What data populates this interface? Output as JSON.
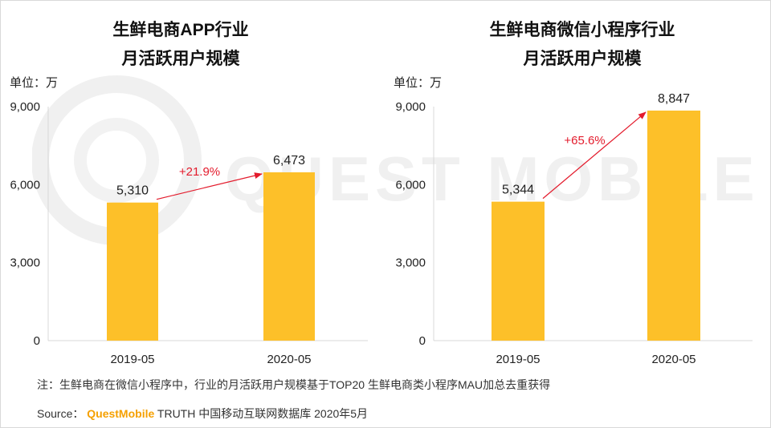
{
  "chart_data": [
    {
      "type": "bar",
      "title_lines": [
        "生鲜电商APP行业",
        "月活跃用户规模"
      ],
      "unit": "单位：万",
      "categories": [
        "2019-05",
        "2020-05"
      ],
      "values": [
        5310,
        6473
      ],
      "value_labels": [
        "5,310",
        "6,473"
      ],
      "growth_label": "+21.9%",
      "ylim": [
        0,
        9000
      ],
      "yticks": [
        0,
        3000,
        6000,
        9000
      ],
      "ytick_labels": [
        "0",
        "3,000",
        "6,000",
        "9,000"
      ],
      "bar_color": "#fdc029",
      "arrow_color": "#e31b2c"
    },
    {
      "type": "bar",
      "title_lines": [
        "生鲜电商微信小程序行业",
        "月活跃用户规模"
      ],
      "unit": "单位：万",
      "categories": [
        "2019-05",
        "2020-05"
      ],
      "values": [
        5344,
        8847
      ],
      "value_labels": [
        "5,344",
        "8,847"
      ],
      "growth_label": "+65.6%",
      "ylim": [
        0,
        9000
      ],
      "yticks": [
        0,
        3000,
        6000,
        9000
      ],
      "ytick_labels": [
        "0",
        "3,000",
        "6,000",
        "9,000"
      ],
      "bar_color": "#fdc029",
      "arrow_color": "#e31b2c"
    }
  ],
  "footnote": "注：生鲜电商在微信小程序中，行业的月活跃用户规模基于TOP20 生鲜电商类小程序MAU加总去重获得",
  "source": {
    "label": "Source：",
    "brand": "QuestMobile",
    "text": "TRUTH 中国移动互联网数据库 2020年5月"
  },
  "watermark": "QUEST MOBILE"
}
